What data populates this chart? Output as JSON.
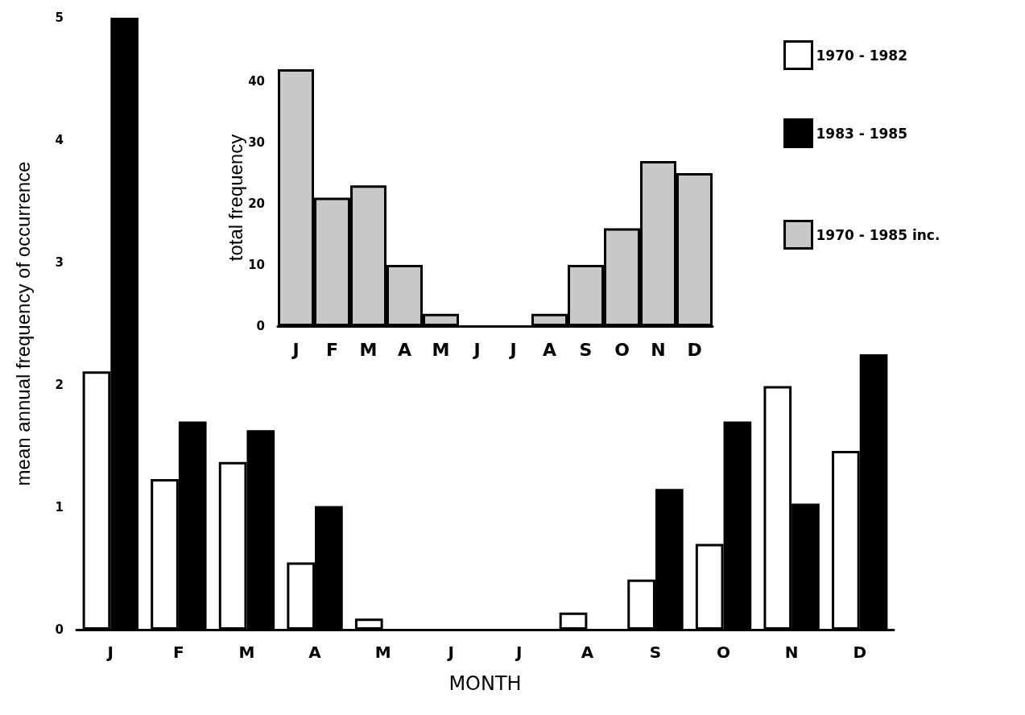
{
  "chart_data": [
    {
      "type": "bar",
      "xlabel": "MONTH",
      "ylabel": "mean annual frequency of occurrence",
      "categories": [
        "J",
        "F",
        "M",
        "A",
        "M",
        "J",
        "J",
        "A",
        "S",
        "O",
        "N",
        "D"
      ],
      "ylim": [
        0,
        5
      ],
      "yticks": [
        0,
        1,
        2,
        3,
        4,
        5
      ],
      "legend": "top right",
      "series": [
        {
          "name": "1970 - 1982",
          "color": "#ffffff",
          "values": [
            2.11,
            1.23,
            1.37,
            0.55,
            0.09,
            0,
            0,
            0.14,
            0.41,
            0.7,
            1.99,
            1.46
          ]
        },
        {
          "name": "1983 - 1985",
          "color": "#000000",
          "values": [
            5.0,
            1.7,
            1.63,
            1.01,
            0,
            0,
            0,
            0,
            1.15,
            1.7,
            1.03,
            2.25
          ]
        }
      ]
    },
    {
      "type": "bar",
      "ylabel": "total frequency",
      "categories": [
        "J",
        "F",
        "M",
        "A",
        "M",
        "J",
        "J",
        "A",
        "S",
        "O",
        "N",
        "D"
      ],
      "ylim": [
        0,
        42
      ],
      "yticks": [
        0,
        10,
        20,
        30,
        40
      ],
      "legend": "right",
      "series": [
        {
          "name": "1970 - 1985 inc.",
          "color": "#c8c8c8",
          "values": [
            42,
            21,
            23,
            10,
            2,
            0,
            0,
            2,
            10,
            16,
            27,
            25
          ]
        }
      ]
    }
  ]
}
